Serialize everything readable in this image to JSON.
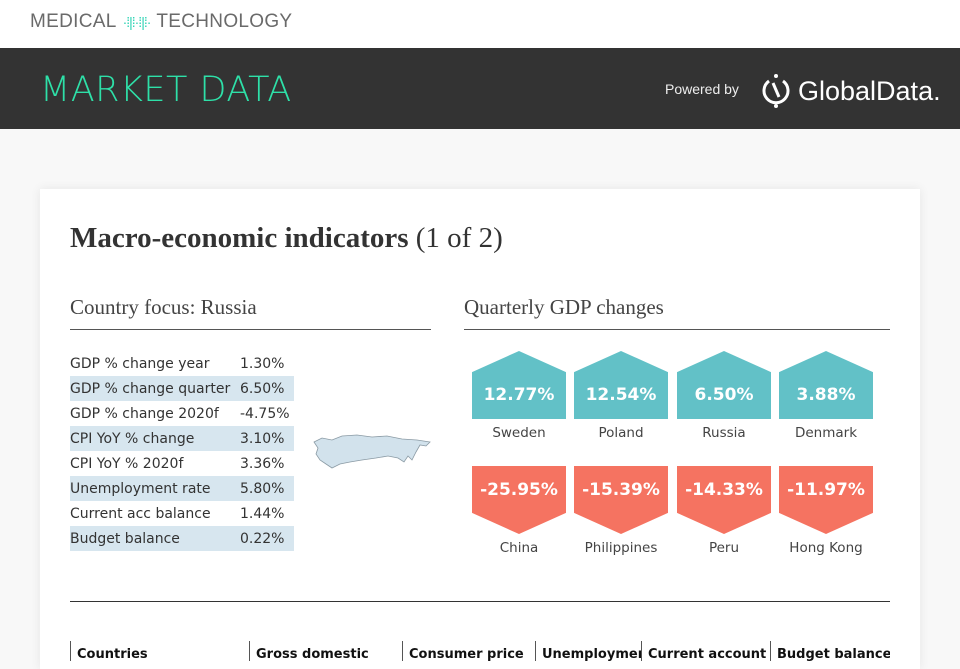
{
  "brand": {
    "left": "MEDICAL",
    "right": "TECHNOLOGY",
    "accent": "#2ed3b4"
  },
  "banner": {
    "title": "MARKET DATA",
    "powered_by": "Powered by",
    "partner": "GlobalData."
  },
  "card": {
    "title": "Macro-economic indicators",
    "title_suffix": "(1 of 2)",
    "country_focus": {
      "heading": "Country focus: Russia",
      "map_icon": "russia-map",
      "rows": [
        {
          "label": "GDP % change year",
          "value": "1.30%"
        },
        {
          "label": "GDP % change quarter",
          "value": "6.50%"
        },
        {
          "label": "GDP % change 2020f",
          "value": "-4.75%"
        },
        {
          "label": "CPI YoY % change",
          "value": "3.10%"
        },
        {
          "label": "CPI YoY % 2020f",
          "value": "3.36%"
        },
        {
          "label": "Unemployment rate",
          "value": "5.80%"
        },
        {
          "label": "Current acc balance",
          "value": "1.44%"
        },
        {
          "label": "Budget balance",
          "value": "0.22%"
        }
      ]
    },
    "quarterly": {
      "heading": "Quarterly GDP changes",
      "positive_color": "#62c1c7",
      "negative_color": "#f57361",
      "top": [
        {
          "value": "12.77%",
          "country": "Sweden"
        },
        {
          "value": "12.54%",
          "country": "Poland"
        },
        {
          "value": "6.50%",
          "country": "Russia"
        },
        {
          "value": "3.88%",
          "country": "Denmark"
        }
      ],
      "bottom": [
        {
          "value": "-25.95%",
          "country": "China"
        },
        {
          "value": "-15.39%",
          "country": "Philippines"
        },
        {
          "value": "-14.33%",
          "country": "Peru"
        },
        {
          "value": "-11.97%",
          "country": "Hong Kong"
        }
      ]
    },
    "table_headers": [
      "Countries",
      "Gross domestic",
      "Consumer price",
      "Unemployment",
      "Current account",
      "Budget balance"
    ]
  }
}
